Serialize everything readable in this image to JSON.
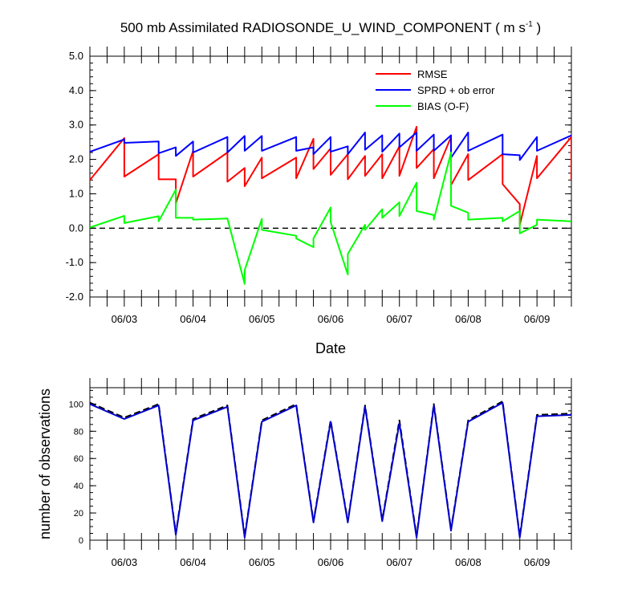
{
  "chart_data": [
    {
      "type": "line",
      "title_main": "500 mb Assimilated RADIOSONDE_U_WIND_COMPONENT ( m s",
      "title_sup": "-1",
      "title_end": " )",
      "xlabel": "Date",
      "ylabel": "",
      "x_range": [
        2.5,
        9.5
      ],
      "ylim": [
        -2.0,
        5.0
      ],
      "y_ticks": [
        -2.0,
        -1.0,
        0.0,
        1.0,
        2.0,
        3.0,
        4.0,
        5.0
      ],
      "y_tick_labels": [
        "-2.0",
        "-1.0",
        "0.0",
        "1.0",
        "2.0",
        "3.0",
        "4.0",
        "5.0"
      ],
      "x_ticks": [
        3,
        4,
        5,
        6,
        7,
        8,
        9
      ],
      "x_tick_labels": [
        "06/03",
        "06/04",
        "06/05",
        "06/06",
        "06/07",
        "06/08",
        "06/09"
      ],
      "zero_line": true,
      "legend": [
        "RMSE",
        "SPRD + ob error",
        "BIAS (O-F)"
      ],
      "series": [
        {
          "name": "RMSE",
          "color": "#ff0000",
          "x": [
            2.5,
            3.0,
            3.0,
            3.5,
            3.5,
            3.75,
            3.75,
            4.0,
            4.0,
            4.5,
            4.5,
            4.75,
            4.75,
            5.0,
            5.0,
            5.5,
            5.5,
            5.75,
            5.75,
            6.0,
            6.0,
            6.25,
            6.25,
            6.5,
            6.5,
            6.75,
            6.75,
            7.0,
            7.0,
            7.25,
            7.25,
            7.5,
            7.5,
            7.75,
            7.75,
            8.0,
            8.0,
            8.5,
            8.5,
            8.75,
            8.75,
            9.0,
            9.0,
            9.5,
            9.5
          ],
          "values": [
            1.4,
            2.62,
            1.5,
            2.15,
            1.42,
            1.42,
            0.72,
            2.25,
            1.5,
            2.2,
            1.35,
            1.75,
            1.22,
            2.05,
            1.45,
            2.05,
            1.45,
            2.6,
            1.72,
            2.32,
            1.55,
            2.15,
            1.42,
            2.1,
            1.52,
            2.15,
            1.45,
            2.38,
            1.52,
            2.95,
            1.75,
            2.3,
            1.45,
            2.65,
            1.25,
            2.15,
            1.4,
            2.15,
            1.28,
            0.7,
            0.1,
            2.1,
            1.45,
            2.65,
            1.4
          ]
        },
        {
          "name": "SPRD + ob error",
          "color": "#0000ff",
          "x": [
            2.5,
            3.0,
            3.0,
            3.5,
            3.5,
            3.75,
            3.75,
            4.0,
            4.0,
            4.5,
            4.5,
            4.75,
            4.75,
            5.0,
            5.0,
            5.5,
            5.5,
            5.75,
            5.75,
            6.0,
            6.0,
            6.25,
            6.25,
            6.5,
            6.5,
            6.75,
            6.75,
            7.0,
            7.0,
            7.25,
            7.25,
            7.5,
            7.5,
            7.75,
            7.75,
            8.0,
            8.0,
            8.5,
            8.5,
            8.75,
            8.75,
            9.0,
            9.0,
            9.5
          ],
          "values": [
            2.22,
            2.58,
            2.48,
            2.52,
            2.18,
            2.35,
            2.1,
            2.52,
            2.2,
            2.65,
            2.2,
            2.68,
            2.25,
            2.68,
            2.25,
            2.65,
            2.25,
            2.35,
            2.15,
            2.65,
            2.22,
            2.38,
            2.15,
            2.78,
            2.28,
            2.7,
            2.22,
            2.75,
            2.35,
            2.78,
            2.25,
            2.72,
            2.25,
            2.7,
            2.05,
            2.78,
            2.25,
            2.72,
            2.15,
            2.12,
            1.98,
            2.65,
            2.25,
            2.7
          ]
        },
        {
          "name": "BIAS (O-F)",
          "color": "#00ff00",
          "x": [
            2.5,
            3.0,
            3.0,
            3.5,
            3.5,
            3.75,
            3.75,
            4.0,
            4.0,
            4.5,
            4.75,
            4.75,
            5.0,
            5.0,
            5.5,
            5.5,
            5.75,
            5.75,
            6.0,
            6.0,
            6.25,
            6.25,
            6.5,
            6.5,
            6.75,
            6.75,
            7.0,
            7.0,
            7.25,
            7.25,
            7.5,
            7.5,
            7.75,
            7.75,
            8.0,
            8.0,
            8.5,
            8.5,
            8.75,
            8.75,
            9.0,
            9.0,
            9.5
          ],
          "values": [
            0.02,
            0.36,
            0.15,
            0.35,
            0.2,
            1.12,
            0.3,
            0.3,
            0.25,
            0.28,
            -1.62,
            -1.22,
            0.27,
            -0.05,
            -0.22,
            -0.3,
            -0.55,
            -0.3,
            0.6,
            0.18,
            -1.35,
            -0.75,
            0.1,
            -0.05,
            0.55,
            0.3,
            0.75,
            0.35,
            1.32,
            0.5,
            0.38,
            0.25,
            2.2,
            0.65,
            0.45,
            0.25,
            0.3,
            0.2,
            0.5,
            -0.15,
            0.1,
            0.25,
            0.2
          ]
        }
      ]
    },
    {
      "type": "line",
      "title": "",
      "xlabel": "",
      "ylabel": "number of observations",
      "x_range": [
        2.5,
        9.5
      ],
      "ylim": [
        0,
        112
      ],
      "y_ticks": [
        0,
        20,
        40,
        60,
        80,
        100
      ],
      "y_tick_labels": [
        "0",
        "20",
        "40",
        "60",
        "80",
        "100"
      ],
      "x_ticks": [
        3,
        4,
        5,
        6,
        7,
        8,
        9
      ],
      "x_tick_labels": [
        "06/03",
        "06/04",
        "06/05",
        "06/06",
        "06/07",
        "06/08",
        "06/09"
      ],
      "series": [
        {
          "name": "number of observations (dashed)",
          "color": "#000000",
          "dashed": true,
          "x": [
            2.5,
            3.0,
            3.5,
            3.75,
            4.0,
            4.5,
            4.75,
            5.0,
            5.5,
            5.75,
            6.0,
            6.25,
            6.5,
            6.75,
            7.0,
            7.25,
            7.5,
            7.75,
            8.0,
            8.5,
            8.75,
            9.0,
            9.5
          ],
          "values": [
            101,
            90,
            100,
            5,
            89,
            99,
            3,
            88,
            100,
            14,
            88,
            14,
            99,
            15,
            88,
            3,
            100,
            8,
            88,
            102,
            3,
            92,
            93
          ]
        },
        {
          "name": "number of observations (solid)",
          "color": "#0000cc",
          "dashed": false,
          "x": [
            2.5,
            3.0,
            3.5,
            3.75,
            4.0,
            4.5,
            4.75,
            5.0,
            5.5,
            5.75,
            6.0,
            6.25,
            6.5,
            6.75,
            7.0,
            7.25,
            7.5,
            7.75,
            8.0,
            8.5,
            8.75,
            9.0,
            9.5
          ],
          "values": [
            100,
            89,
            99,
            4,
            88,
            98,
            2,
            87,
            99,
            13,
            87,
            13,
            98,
            14,
            86,
            2,
            99,
            7,
            87,
            101,
            2,
            91,
            92
          ]
        }
      ]
    }
  ]
}
